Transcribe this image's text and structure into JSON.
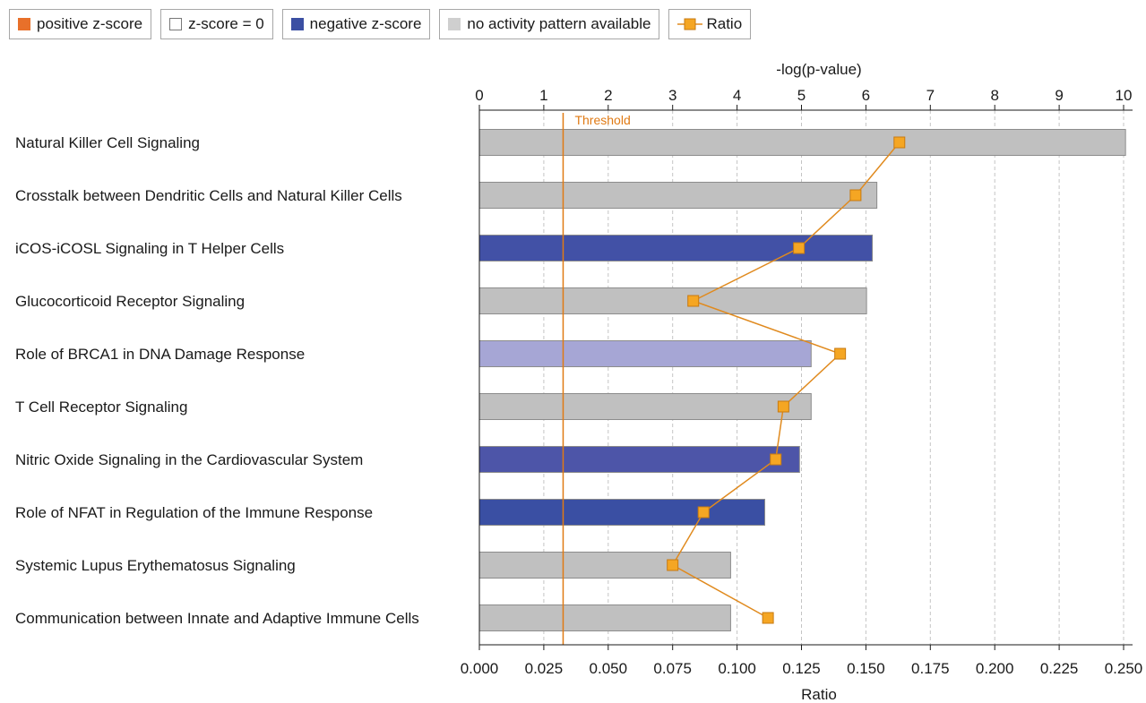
{
  "legend": {
    "positive": {
      "label": "positive z-score",
      "color": "#e8702a"
    },
    "zero": {
      "label": "z-score = 0",
      "color": "#ffffff"
    },
    "negative": {
      "label": "negative z-score",
      "color": "#3b4fa3"
    },
    "none": {
      "label": "no activity pattern available",
      "color": "#cfcfcf"
    },
    "ratio": {
      "label": "Ratio",
      "color": "#f5a623"
    }
  },
  "chart_data": {
    "type": "bar",
    "orientation": "horizontal",
    "top_axis_label": "-log(p-value)",
    "bottom_axis_label": "Ratio",
    "threshold_label": "Threshold",
    "threshold_value": 1.3,
    "top_ticks": [
      "0",
      "1",
      "2",
      "3",
      "4",
      "5",
      "6",
      "7",
      "8",
      "9",
      "10"
    ],
    "top_range": [
      0,
      10
    ],
    "bottom_ticks": [
      "0.000",
      "0.025",
      "0.050",
      "0.075",
      "0.100",
      "0.125",
      "0.150",
      "0.175",
      "0.200",
      "0.225",
      "0.250"
    ],
    "bottom_range": [
      0,
      0.25
    ],
    "grid": "vertical dashed",
    "categories": [
      "Natural Killer Cell Signaling",
      "Crosstalk between Dendritic Cells and Natural Killer Cells",
      "iCOS-iCOSL Signaling in T Helper Cells",
      "Glucocorticoid Receptor Signaling",
      "Role of BRCA1 in DNA Damage Response",
      "T Cell Receptor Signaling",
      "Nitric Oxide Signaling in the Cardiovascular System",
      "Role of NFAT in Regulation of the Immune Response",
      "Systemic Lupus Erythematosus Signaling",
      "Communication between Innate and Adaptive Immune Cells"
    ],
    "neg_log_p": [
      10.03,
      6.17,
      6.1,
      6.01,
      5.15,
      5.15,
      4.97,
      4.43,
      3.9,
      3.9
    ],
    "bar_colors": [
      "#c0c0c0",
      "#c0c0c0",
      "#4251a6",
      "#c0c0c0",
      "#a6a6d5",
      "#c0c0c0",
      "#4d55a8",
      "#3a4fa3",
      "#c0c0c0",
      "#c0c0c0"
    ],
    "series": [
      {
        "name": "Ratio",
        "values": [
          0.163,
          0.146,
          0.124,
          0.083,
          0.14,
          0.118,
          0.115,
          0.087,
          0.075,
          0.112
        ]
      }
    ]
  }
}
